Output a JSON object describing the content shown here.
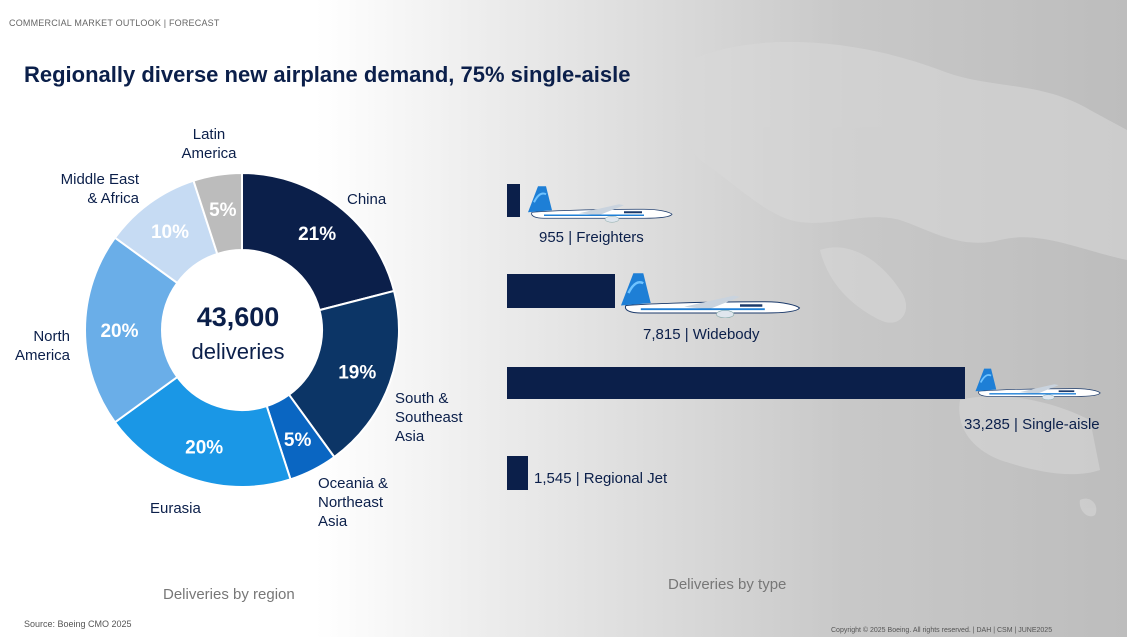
{
  "header": {
    "breadcrumb": "COMMERCIAL MARKET OUTLOOK |  FORECAST"
  },
  "title": "Regionally diverse new airplane demand, 75% single-aisle",
  "center": {
    "value": "43,600",
    "label": "deliveries"
  },
  "captions": {
    "region": "Deliveries by region",
    "type": "Deliveries by type"
  },
  "footer": {
    "source": "Source: Boeing CMO 2025",
    "copyright": "Copyright © 2025 Boeing. All rights reserved.   | DAH |  CSM  |  JUNE2025"
  },
  "colors": {
    "navy": "#0b1f4a",
    "china": "#0b1f4a",
    "south_southeast_asia": "#0c3566",
    "oceania_northeast_asia": "#0a66c2",
    "eurasia": "#1a97e6",
    "north_america": "#6aaee8",
    "middle_east_africa": "#c6dbf3",
    "latin_america": "#bcbcbc"
  },
  "chart_data": [
    {
      "type": "pie",
      "title": "Deliveries by region",
      "total_label": "43,600 deliveries",
      "series": [
        {
          "name": "China",
          "value": 21,
          "label": "21%",
          "region_lines": [
            "China"
          ],
          "color": "#0b1f4a"
        },
        {
          "name": "South & Southeast Asia",
          "value": 19,
          "label": "19%",
          "region_lines": [
            "South &",
            "Southeast",
            "Asia"
          ],
          "color": "#0c3566"
        },
        {
          "name": "Oceania & Northeast Asia",
          "value": 5,
          "label": "5%",
          "region_lines": [
            "Oceania &",
            "Northeast",
            "Asia"
          ],
          "color": "#0a66c2"
        },
        {
          "name": "Eurasia",
          "value": 20,
          "label": "20%",
          "region_lines": [
            "Eurasia"
          ],
          "color": "#1a97e6"
        },
        {
          "name": "North America",
          "value": 20,
          "label": "20%",
          "region_lines": [
            "North",
            "America"
          ],
          "color": "#6aaee8"
        },
        {
          "name": "Middle East & Africa",
          "value": 10,
          "label": "10%",
          "region_lines": [
            "Middle East",
            "& Africa"
          ],
          "color": "#c6dbf3"
        },
        {
          "name": "Latin America",
          "value": 5,
          "label": "5%",
          "region_lines": [
            "Latin",
            "America"
          ],
          "color": "#bcbcbc"
        }
      ]
    },
    {
      "type": "bar",
      "orientation": "horizontal",
      "title": "Deliveries by type",
      "categories": [
        "Freighters",
        "Widebody",
        "Single-aisle",
        "Regional Jet"
      ],
      "values": [
        955,
        7815,
        33285,
        1545
      ],
      "labels": [
        "955 | Freighters",
        "7,815 | Widebody",
        "33,285 | Single-aisle",
        "1,545 | Regional Jet"
      ],
      "icons": [
        "freighter-plane-icon",
        "widebody-plane-icon",
        "single-aisle-plane-icon",
        ""
      ]
    }
  ]
}
